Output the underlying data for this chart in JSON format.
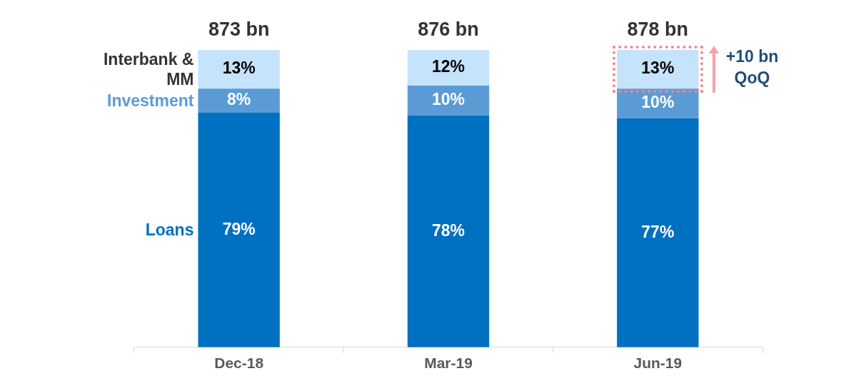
{
  "chart_data": {
    "type": "bar",
    "stacked": true,
    "tick_labels": "x",
    "grid": false,
    "legend": false,
    "categories": [
      "Dec-18",
      "Mar-19",
      "Jun-19"
    ],
    "series": [
      {
        "name": "Loans",
        "color": "#0070c0",
        "values": [
          79,
          78,
          77
        ],
        "value_labels": [
          "79%",
          "78%",
          "77%"
        ]
      },
      {
        "name": "Investment",
        "color": "#5b9bd5",
        "values": [
          8,
          10,
          10
        ],
        "value_labels": [
          "8%",
          "10%",
          "10%"
        ]
      },
      {
        "name": "Interbank & MM",
        "color": "#c5e3fb",
        "values": [
          13,
          12,
          13
        ],
        "value_labels": [
          "13%",
          "12%",
          "13%"
        ]
      }
    ],
    "annotations": [
      {
        "text": "873 bn",
        "x": "Dec-18",
        "y": 100
      },
      {
        "text": "876 bn",
        "x": "Mar-19",
        "y": 100
      },
      {
        "text": "878 bn",
        "x": "Jun-19",
        "y": 100
      },
      "+10 bn QoQ"
    ]
  }
}
